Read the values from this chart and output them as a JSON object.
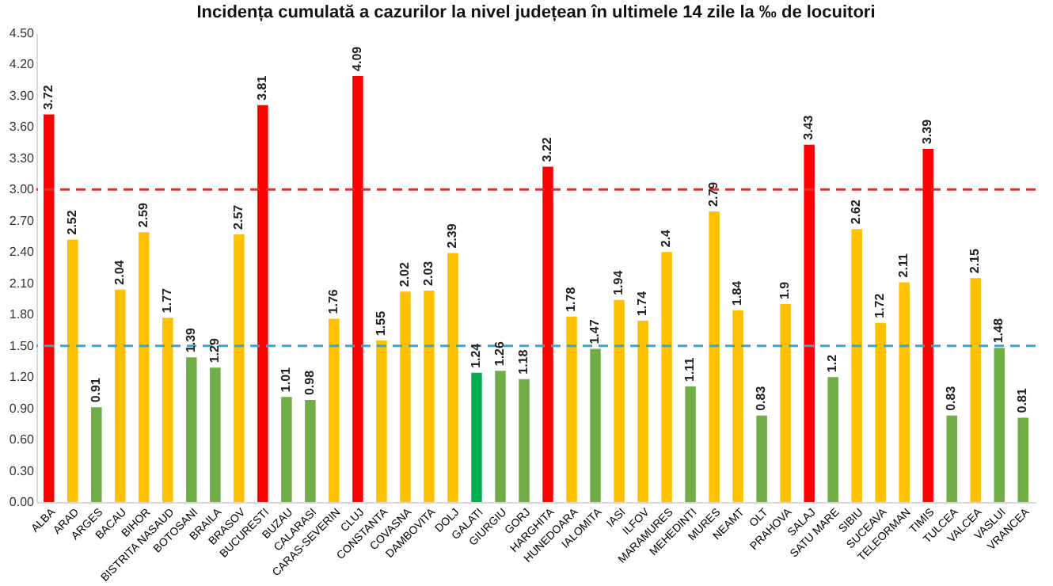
{
  "chart_data": {
    "type": "bar",
    "title": "Incidența cumulată a cazurilor la nivel județean în ultimele 14 zile la ‰ de locuitori",
    "categories": [
      "ALBA",
      "ARAD",
      "ARGES",
      "BACAU",
      "BIHOR",
      "BISTRITA NASAUD",
      "BOTOSANI",
      "BRAILA",
      "BRASOV",
      "BUCURESTI",
      "BUZAU",
      "CALARASI",
      "CARAS-SEVERIN",
      "CLUJ",
      "CONSTANTA",
      "COVASNA",
      "DAMBOVITA",
      "DOLJ",
      "GALATI",
      "GIURGIU",
      "GORJ",
      "HARGHITA",
      "HUNEDOARA",
      "IALOMITA",
      "IASI",
      "ILFOV",
      "MARAMURES",
      "MEHEDINTI",
      "MURES",
      "NEAMT",
      "OLT",
      "PRAHOVA",
      "SALAJ",
      "SATU MARE",
      "SIBIU",
      "SUCEAVA",
      "TELEORMAN",
      "TIMIS",
      "TULCEA",
      "VALCEA",
      "VASLUI",
      "VRANCEA"
    ],
    "values": [
      3.72,
      2.52,
      0.91,
      2.04,
      2.59,
      1.77,
      1.39,
      1.29,
      2.57,
      3.81,
      1.01,
      0.98,
      1.76,
      4.09,
      1.55,
      2.02,
      2.03,
      2.39,
      1.24,
      1.26,
      1.18,
      3.22,
      1.78,
      1.47,
      1.94,
      1.74,
      2.4,
      1.11,
      2.79,
      1.84,
      0.83,
      1.9,
      3.43,
      1.2,
      2.62,
      1.72,
      2.11,
      3.39,
      0.83,
      2.15,
      1.48,
      0.81
    ],
    "colors": [
      "#ff0000",
      "#ffc000",
      "#70ad47",
      "#ffc000",
      "#ffc000",
      "#ffc000",
      "#70ad47",
      "#70ad47",
      "#ffc000",
      "#ff0000",
      "#70ad47",
      "#70ad47",
      "#ffc000",
      "#ff0000",
      "#ffc000",
      "#ffc000",
      "#ffc000",
      "#ffc000",
      "#00b050",
      "#70ad47",
      "#70ad47",
      "#ff0000",
      "#ffc000",
      "#70ad47",
      "#ffc000",
      "#ffc000",
      "#ffc000",
      "#70ad47",
      "#ffc000",
      "#ffc000",
      "#70ad47",
      "#ffc000",
      "#ff0000",
      "#70ad47",
      "#ffc000",
      "#ffc000",
      "#ffc000",
      "#ff0000",
      "#70ad47",
      "#ffc000",
      "#70ad47",
      "#70ad47"
    ],
    "ylim": [
      0,
      4.5
    ],
    "yticks": [
      {
        "value": 0,
        "label": "0.00"
      },
      {
        "value": 0.3,
        "label": "0.30"
      },
      {
        "value": 0.6,
        "label": "0.60"
      },
      {
        "value": 0.9,
        "label": "0.90"
      },
      {
        "value": 1.2,
        "label": "1.20"
      },
      {
        "value": 1.5,
        "label": "1.50"
      },
      {
        "value": 1.8,
        "label": "1.80"
      },
      {
        "value": 2.1,
        "label": "2.10"
      },
      {
        "value": 2.4,
        "label": "2.40"
      },
      {
        "value": 2.7,
        "label": "2.70"
      },
      {
        "value": 3.0,
        "label": "3.00"
      },
      {
        "value": 3.3,
        "label": "3.30"
      },
      {
        "value": 3.6,
        "label": "3.60"
      },
      {
        "value": 3.9,
        "label": "3.90"
      },
      {
        "value": 4.2,
        "label": "4.20"
      },
      {
        "value": 4.5,
        "label": "4.50"
      }
    ],
    "ref_lines": [
      {
        "axis": "y",
        "value": 3.0,
        "color": "#e03030",
        "line_style": "dashed"
      },
      {
        "axis": "y",
        "value": 1.5,
        "color": "#2ea8d8",
        "line_style": "dashed"
      }
    ],
    "data_labels": true,
    "grid": false
  }
}
